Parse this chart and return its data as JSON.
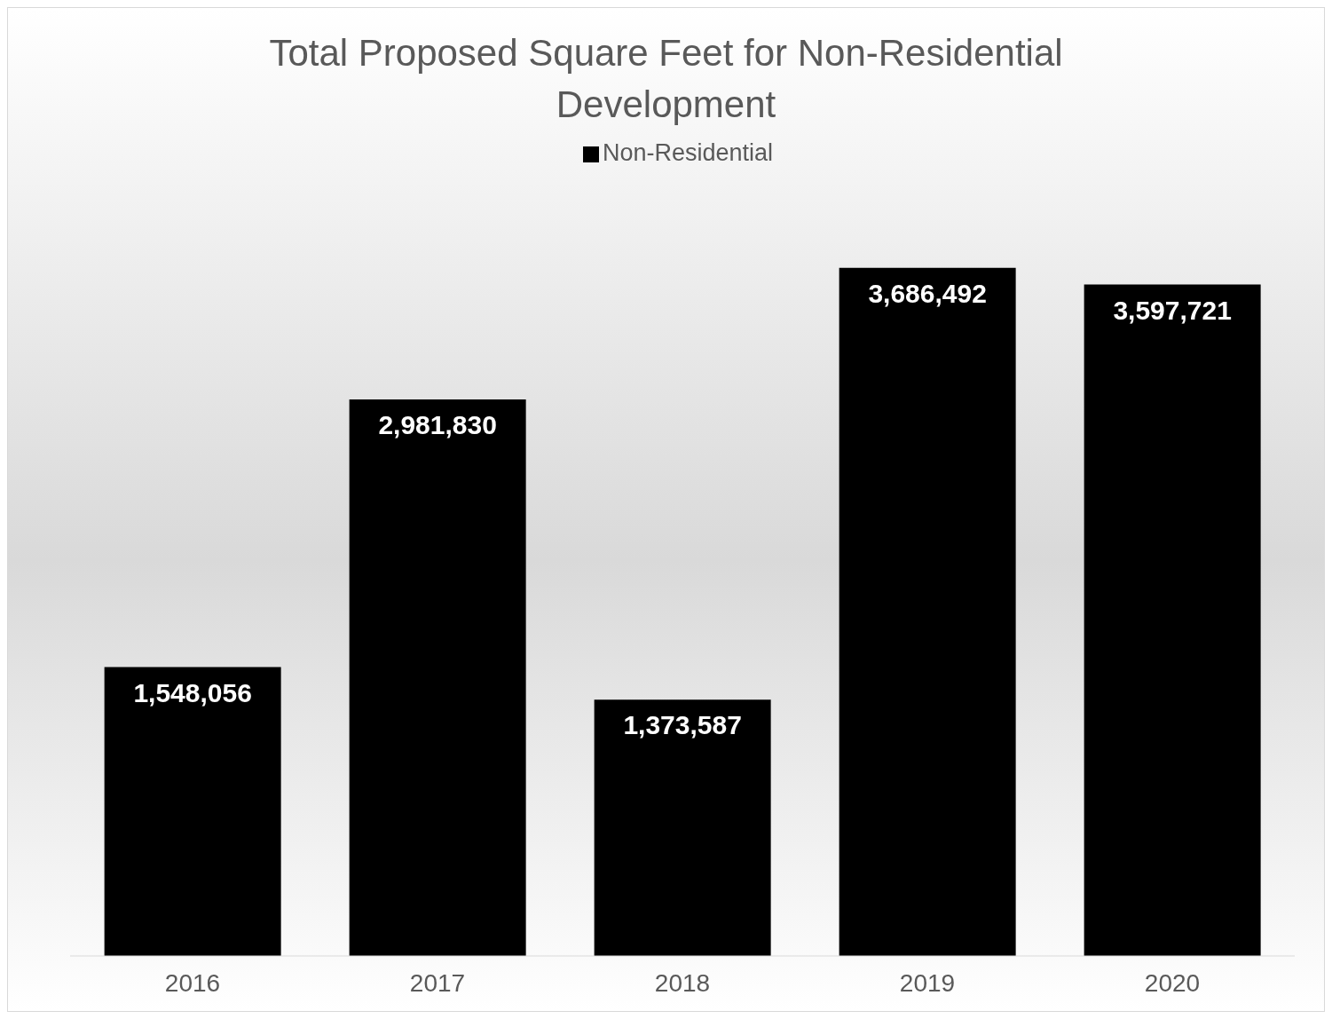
{
  "chart_data": {
    "type": "bar",
    "title": "Total Proposed Square Feet for Non-Residential Development",
    "categories": [
      "2016",
      "2017",
      "2018",
      "2019",
      "2020"
    ],
    "series": [
      {
        "name": "Non-Residential",
        "color": "#000000",
        "values": [
          1548056,
          2981830,
          1373587,
          3686492,
          3597721
        ],
        "value_labels": [
          "1,548,056",
          "2,981,830",
          "1,373,587",
          "3,686,492",
          "3,597,721"
        ]
      }
    ],
    "legend": "top",
    "grid": false
  }
}
